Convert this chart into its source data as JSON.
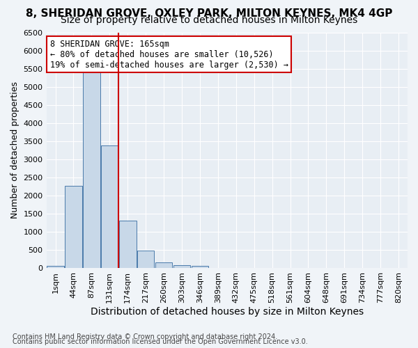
{
  "title1": "8, SHERIDAN GROVE, OXLEY PARK, MILTON KEYNES, MK4 4GP",
  "title2": "Size of property relative to detached houses in Milton Keynes",
  "xlabel": "Distribution of detached houses by size in Milton Keynes",
  "ylabel": "Number of detached properties",
  "footnote1": "Contains HM Land Registry data © Crown copyright and database right 2024.",
  "footnote2": "Contains public sector information licensed under the Open Government Licence v3.0.",
  "annotation_line1": "8 SHERIDAN GROVE: 165sqm",
  "annotation_line2": "← 80% of detached houses are smaller (10,526)",
  "annotation_line3": "19% of semi-detached houses are larger (2,530) →",
  "bar_values": [
    60,
    2280,
    5430,
    3390,
    1310,
    480,
    160,
    90,
    60,
    0,
    0,
    0,
    0,
    0,
    0,
    0,
    0,
    0,
    0,
    0
  ],
  "bin_labels": [
    "1sqm",
    "44sqm",
    "87sqm",
    "131sqm",
    "174sqm",
    "217sqm",
    "260sqm",
    "303sqm",
    "346sqm",
    "389sqm",
    "432sqm",
    "475sqm",
    "518sqm",
    "561sqm",
    "604sqm",
    "648sqm",
    "691sqm",
    "734sqm",
    "777sqm",
    "820sqm"
  ],
  "bar_color": "#c8d8e8",
  "bar_edge_color": "#4a7aaa",
  "vline_color": "#cc0000",
  "annotation_box_color": "#cc0000",
  "ylim": [
    0,
    6500
  ],
  "yticks": [
    0,
    500,
    1000,
    1500,
    2000,
    2500,
    3000,
    3500,
    4000,
    4500,
    5000,
    5500,
    6000,
    6500
  ],
  "bg_color": "#e8eef4",
  "grid_color": "#ffffff",
  "title1_fontsize": 11,
  "title2_fontsize": 10,
  "xlabel_fontsize": 10,
  "ylabel_fontsize": 9,
  "tick_fontsize": 8,
  "annotation_fontsize": 8.5,
  "footnote_fontsize": 7,
  "fig_facecolor": "#f0f4f8"
}
